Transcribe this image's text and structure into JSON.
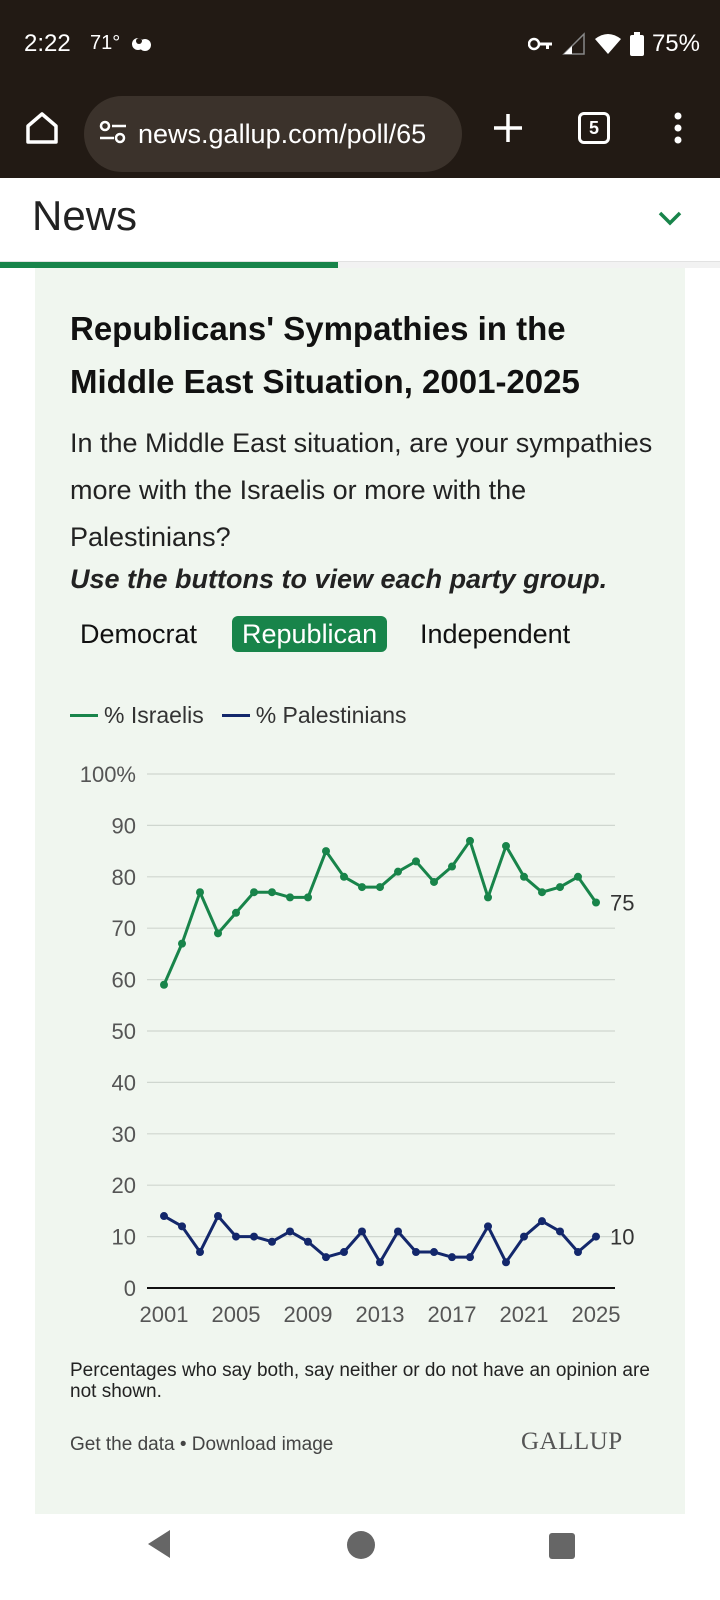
{
  "status_bar": {
    "time": "2:22",
    "temperature": "71°",
    "battery": "75%",
    "icons": [
      "cloud-icon",
      "key-icon",
      "signal-icon",
      "wifi-icon",
      "battery-icon"
    ]
  },
  "browser": {
    "url": "news.gallup.com/poll/65",
    "tab_count": "5",
    "icons": [
      "home-icon",
      "tune-icon",
      "plus-icon",
      "tabs-icon",
      "more-vert-icon"
    ]
  },
  "header": {
    "title": "News",
    "scroll_progress": 0.47,
    "accent_color": "#18844a"
  },
  "card": {
    "title": "Republicans' Sympathies in the Middle East Situation, 2001-2025",
    "question": "In the Middle East situation, are your sympathies more with the Israelis or more with the Palestinians?",
    "instruction": "Use the buttons to view each party group.",
    "party_buttons": [
      {
        "label": "Democrat",
        "active": false
      },
      {
        "label": "Republican",
        "active": true
      },
      {
        "label": "Independent",
        "active": false
      }
    ],
    "footnote": "Percentages who say both, say neither or do not have an opinion are not shown.",
    "footer_link_1": "Get the data",
    "footer_separator": " • ",
    "footer_link_2": "Download image",
    "brand": "GALLUP",
    "background_color": "#f0f6ef"
  },
  "chart_data": {
    "type": "line",
    "x": [
      2001,
      2002,
      2003,
      2004,
      2005,
      2006,
      2007,
      2008,
      2009,
      2010,
      2011,
      2012,
      2013,
      2014,
      2015,
      2016,
      2017,
      2018,
      2019,
      2020,
      2021,
      2022,
      2023,
      2024,
      2025
    ],
    "x_tick_labels": [
      "2001",
      "2005",
      "2009",
      "2013",
      "2017",
      "2021",
      "2025"
    ],
    "x_tick_values": [
      2001,
      2005,
      2009,
      2013,
      2017,
      2021,
      2025
    ],
    "y_tick_labels": [
      "0",
      "10",
      "20",
      "30",
      "40",
      "50",
      "60",
      "70",
      "80",
      "90",
      "100%"
    ],
    "y_tick_values": [
      0,
      10,
      20,
      30,
      40,
      50,
      60,
      70,
      80,
      90,
      100
    ],
    "ylim": [
      0,
      100
    ],
    "xlim": [
      2001,
      2025
    ],
    "grid": true,
    "legend_position": "top-left",
    "series": [
      {
        "name": "% Israelis",
        "color": "#18844a",
        "values": [
          59,
          67,
          77,
          69,
          73,
          77,
          77,
          76,
          76,
          85,
          80,
          78,
          78,
          81,
          83,
          79,
          82,
          87,
          76,
          86,
          80,
          77,
          78,
          80,
          75
        ],
        "end_label": "75"
      },
      {
        "name": "% Palestinians",
        "color": "#13276b",
        "values": [
          14,
          12,
          7,
          14,
          10,
          10,
          9,
          11,
          9,
          6,
          7,
          11,
          5,
          11,
          7,
          7,
          6,
          6,
          12,
          5,
          10,
          13,
          11,
          7,
          10
        ],
        "end_label": "10"
      }
    ]
  }
}
